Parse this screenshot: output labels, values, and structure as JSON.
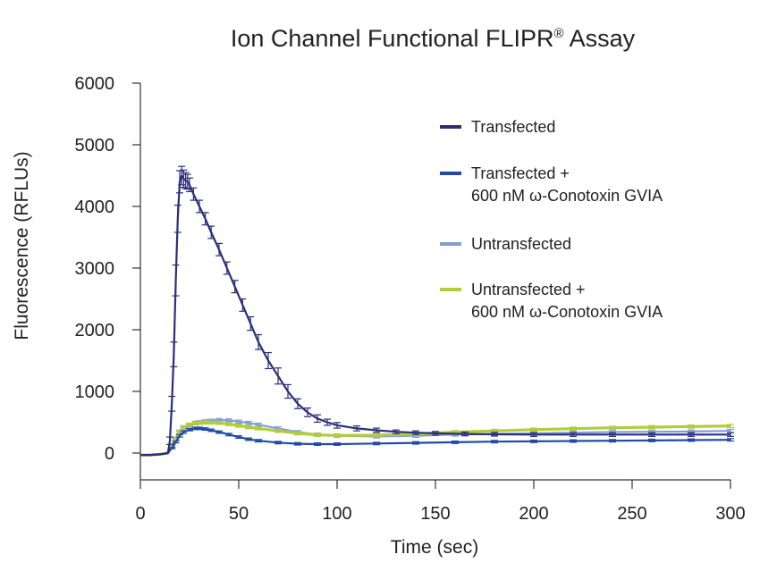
{
  "chart_data": {
    "type": "line",
    "title": "Ion Channel Functional FLIPR",
    "title_mark": "®",
    "title_suffix": " Assay",
    "xlabel": "Time (sec)",
    "ylabel": "Fluorescence (RFLUs)",
    "xlim": [
      0,
      300
    ],
    "ylim": [
      0,
      6000
    ],
    "x_ticks": [
      0,
      50,
      100,
      150,
      200,
      250,
      300
    ],
    "y_ticks": [
      0,
      1000,
      2000,
      3000,
      4000,
      5000,
      6000
    ],
    "x_tick_labels": [
      "0",
      "50",
      "100",
      "150",
      "200",
      "250",
      "300"
    ],
    "y_tick_labels": [
      "0",
      "1000",
      "2000",
      "3000",
      "4000",
      "5000",
      "6000"
    ],
    "grid": false,
    "legend_position": "top-right",
    "legend": [
      {
        "lines": [
          "Transfected"
        ],
        "color": "#2b2f7a"
      },
      {
        "lines": [
          "Transfected +",
          "600 nM ω-Conotoxin GVIA"
        ],
        "color": "#1f4aa8"
      },
      {
        "lines": [
          "Untransfected"
        ],
        "color": "#7f9fd6"
      },
      {
        "lines": [
          "Untransfected +",
          "600 nM ω-Conotoxin GVIA"
        ],
        "color": "#b3cc3a"
      }
    ],
    "series": [
      {
        "name": "Transfected",
        "color": "#2b2f7a",
        "x": [
          0,
          5,
          10,
          14,
          15,
          16,
          17,
          18,
          19,
          20,
          21,
          22,
          23,
          24,
          25,
          27,
          30,
          33,
          36,
          40,
          44,
          48,
          52,
          56,
          60,
          65,
          70,
          75,
          80,
          85,
          90,
          95,
          100,
          110,
          120,
          130,
          140,
          150,
          165,
          180,
          200,
          220,
          240,
          260,
          280,
          300
        ],
        "y": [
          -30,
          -30,
          -20,
          0,
          200,
          800,
          1600,
          2800,
          3800,
          4400,
          4500,
          4450,
          4420,
          4400,
          4350,
          4200,
          4000,
          3800,
          3580,
          3300,
          3000,
          2700,
          2400,
          2100,
          1800,
          1500,
          1250,
          1000,
          800,
          660,
          560,
          500,
          450,
          400,
          370,
          345,
          330,
          320,
          310,
          305,
          300,
          300,
          300,
          300,
          300,
          300
        ],
        "err": [
          0,
          0,
          0,
          0,
          60,
          120,
          200,
          250,
          220,
          180,
          150,
          140,
          130,
          120,
          110,
          100,
          100,
          100,
          100,
          100,
          100,
          100,
          100,
          110,
          120,
          130,
          130,
          110,
          80,
          70,
          60,
          50,
          45,
          40,
          35,
          30,
          30,
          30,
          30,
          30,
          30,
          30,
          30,
          30,
          30,
          30
        ]
      },
      {
        "name": "Transfected + 600 nM ω-Conotoxin GVIA",
        "color": "#1f4aa8",
        "x": [
          0,
          5,
          10,
          14,
          16,
          18,
          20,
          22,
          25,
          28,
          30,
          33,
          36,
          40,
          45,
          50,
          55,
          60,
          70,
          80,
          90,
          100,
          120,
          140,
          160,
          180,
          200,
          220,
          240,
          260,
          280,
          300
        ],
        "y": [
          -30,
          -30,
          -20,
          0,
          80,
          180,
          280,
          340,
          380,
          400,
          400,
          390,
          370,
          340,
          300,
          260,
          225,
          200,
          170,
          150,
          145,
          145,
          155,
          165,
          175,
          185,
          190,
          195,
          200,
          205,
          210,
          215
        ],
        "err": [
          0,
          0,
          0,
          0,
          10,
          15,
          20,
          20,
          20,
          20,
          20,
          20,
          20,
          20,
          20,
          20,
          20,
          20,
          20,
          20,
          20,
          20,
          20,
          20,
          20,
          20,
          20,
          20,
          20,
          20,
          20,
          20
        ]
      },
      {
        "name": "Untransfected",
        "color": "#7f9fd6",
        "x": [
          0,
          5,
          10,
          14,
          16,
          18,
          20,
          22,
          25,
          28,
          30,
          33,
          36,
          40,
          45,
          50,
          55,
          60,
          70,
          80,
          90,
          100,
          120,
          140,
          160,
          180,
          200,
          220,
          240,
          260,
          280,
          300
        ],
        "y": [
          -30,
          -30,
          -20,
          0,
          100,
          220,
          330,
          400,
          450,
          490,
          500,
          515,
          525,
          535,
          530,
          510,
          490,
          460,
          400,
          340,
          300,
          280,
          270,
          280,
          300,
          310,
          320,
          330,
          340,
          345,
          350,
          360
        ],
        "err": [
          0,
          0,
          0,
          0,
          15,
          20,
          25,
          25,
          25,
          25,
          25,
          25,
          25,
          25,
          25,
          25,
          25,
          25,
          25,
          25,
          25,
          25,
          25,
          25,
          25,
          25,
          25,
          25,
          25,
          25,
          25,
          25
        ]
      },
      {
        "name": "Untransfected + 600 nM ω-Conotoxin GVIA",
        "color": "#b3cc3a",
        "x": [
          0,
          5,
          10,
          14,
          16,
          18,
          20,
          22,
          25,
          28,
          30,
          33,
          36,
          40,
          45,
          50,
          55,
          60,
          70,
          80,
          90,
          100,
          120,
          140,
          160,
          180,
          200,
          220,
          240,
          260,
          280,
          300
        ],
        "y": [
          -30,
          -30,
          -20,
          0,
          110,
          240,
          350,
          420,
          460,
          480,
          490,
          495,
          495,
          490,
          470,
          445,
          420,
          400,
          360,
          320,
          295,
          285,
          290,
          310,
          340,
          360,
          380,
          395,
          410,
          420,
          430,
          440
        ],
        "err": [
          0,
          0,
          0,
          0,
          15,
          20,
          25,
          25,
          25,
          25,
          25,
          25,
          25,
          25,
          25,
          25,
          25,
          25,
          25,
          25,
          25,
          25,
          25,
          25,
          25,
          25,
          25,
          25,
          25,
          25,
          25,
          25
        ]
      }
    ]
  }
}
